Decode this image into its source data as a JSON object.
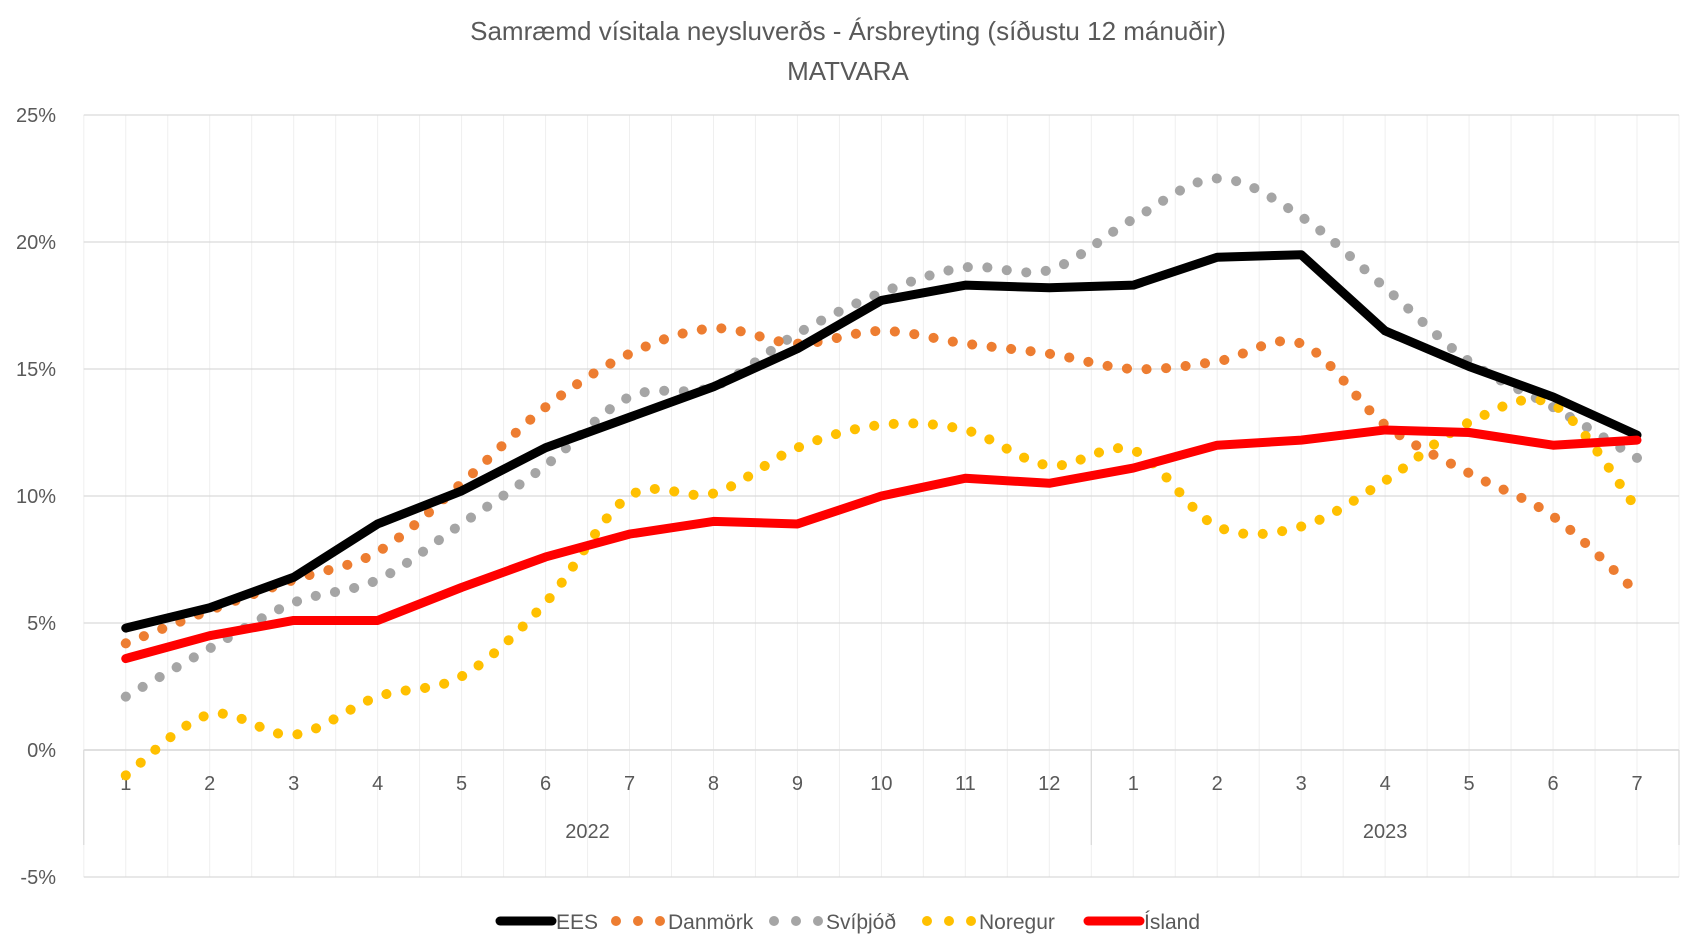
{
  "chart_data": {
    "type": "line",
    "title": "Samræmd vísitala neysluverðs - Ársbreyting (síðustu 12 mánuðir)",
    "subtitle": "MATVARA",
    "xlabel": "",
    "ylabel": "",
    "ylim": [
      -5,
      25
    ],
    "yticks": [
      -5,
      0,
      5,
      10,
      15,
      20,
      25
    ],
    "ytick_labels": [
      "-5%",
      "0%",
      "5%",
      "10%",
      "15%",
      "20%",
      "25%"
    ],
    "grid": true,
    "legend_position": "bottom",
    "categories": [
      "1",
      "2",
      "3",
      "4",
      "5",
      "6",
      "7",
      "8",
      "9",
      "10",
      "11",
      "12",
      "1",
      "2",
      "3",
      "4",
      "5",
      "6",
      "7"
    ],
    "category_groups": [
      {
        "label": "2022",
        "count": 12
      },
      {
        "label": "2023",
        "count": 7
      }
    ],
    "series": [
      {
        "name": "EES",
        "color": "#000000",
        "style": "solid",
        "values": [
          4.8,
          5.6,
          6.8,
          8.9,
          10.2,
          11.9,
          13.1,
          14.3,
          15.8,
          17.7,
          18.3,
          18.2,
          18.3,
          19.4,
          19.5,
          16.5,
          15.1,
          13.9,
          12.4
        ]
      },
      {
        "name": "Danmörk",
        "color": "#ED7D31",
        "style": "dotted",
        "values": [
          4.2,
          5.5,
          6.7,
          7.8,
          10.5,
          13.5,
          15.6,
          16.6,
          16.0,
          16.5,
          16.0,
          15.6,
          15.0,
          15.3,
          16.0,
          12.8,
          10.9,
          9.2,
          6.2
        ]
      },
      {
        "name": "Svíþjóð",
        "color": "#A5A5A5",
        "style": "dotted",
        "values": [
          2.1,
          4.0,
          5.8,
          6.7,
          8.9,
          11.2,
          13.9,
          14.3,
          16.4,
          18.0,
          19.0,
          18.9,
          20.9,
          22.5,
          21.0,
          18.2,
          15.3,
          13.5,
          11.5
        ]
      },
      {
        "name": "Noregur",
        "color": "#FFC000",
        "style": "dotted",
        "values": [
          -1.0,
          1.4,
          0.6,
          2.1,
          2.9,
          5.8,
          10.0,
          10.1,
          11.9,
          12.8,
          12.6,
          11.2,
          11.8,
          8.8,
          8.8,
          10.6,
          12.9,
          13.6,
          9.5
        ]
      },
      {
        "name": "Ísland",
        "color": "#FF0000",
        "style": "solid",
        "values": [
          3.6,
          4.5,
          5.1,
          5.1,
          6.4,
          7.6,
          8.5,
          9.0,
          8.9,
          10.0,
          10.7,
          10.5,
          11.1,
          12.0,
          12.2,
          12.6,
          12.5,
          12.0,
          12.2
        ]
      }
    ]
  }
}
